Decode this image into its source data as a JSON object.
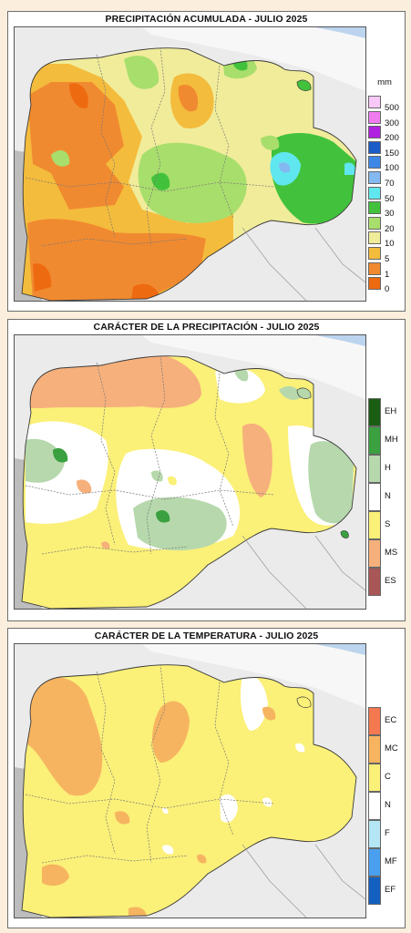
{
  "panels": [
    {
      "title": "PRECIPITACIÓN ACUMULADA - JULIO 2025",
      "legend": {
        "unit": "mm",
        "items": [
          {
            "label": "500",
            "color": "#f8c8f8"
          },
          {
            "label": "300",
            "color": "#f07cf0"
          },
          {
            "label": "200",
            "color": "#b020e0"
          },
          {
            "label": "150",
            "color": "#1a5cc8"
          },
          {
            "label": "100",
            "color": "#3d88e6"
          },
          {
            "label": "70",
            "color": "#84b8f0"
          },
          {
            "label": "50",
            "color": "#60e6ee"
          },
          {
            "label": "30",
            "color": "#42c23c"
          },
          {
            "label": "20",
            "color": "#a8de6c"
          },
          {
            "label": "10",
            "color": "#f0ec9a"
          },
          {
            "label": "5",
            "color": "#f4bc3c"
          },
          {
            "label": "1",
            "color": "#f08a30"
          },
          {
            "label": "0",
            "color": "#ee6a10"
          }
        ]
      }
    },
    {
      "title": "CARÁCTER DE LA PRECIPITACIÓN - JULIO 2025",
      "legend": {
        "unit": "",
        "items": [
          {
            "label": "EH",
            "color": "#1a5e14"
          },
          {
            "label": "MH",
            "color": "#3aa040"
          },
          {
            "label": "H",
            "color": "#b6d8ac"
          },
          {
            "label": "N",
            "color": "#ffffff"
          },
          {
            "label": "S",
            "color": "#fbf078"
          },
          {
            "label": "MS",
            "color": "#f6b07c"
          },
          {
            "label": "ES",
            "color": "#a85656"
          }
        ]
      }
    },
    {
      "title": "CARÁCTER DE LA TEMPERATURA - JULIO 2025",
      "legend": {
        "unit": "",
        "items": [
          {
            "label": "EC",
            "color": "#f47850"
          },
          {
            "label": "MC",
            "color": "#f6b460"
          },
          {
            "label": "C",
            "color": "#fbf078"
          },
          {
            "label": "N",
            "color": "#ffffff"
          },
          {
            "label": "F",
            "color": "#b4e6f6"
          },
          {
            "label": "MF",
            "color": "#4aa0ee"
          },
          {
            "label": "EF",
            "color": "#1460c0"
          }
        ]
      }
    }
  ]
}
